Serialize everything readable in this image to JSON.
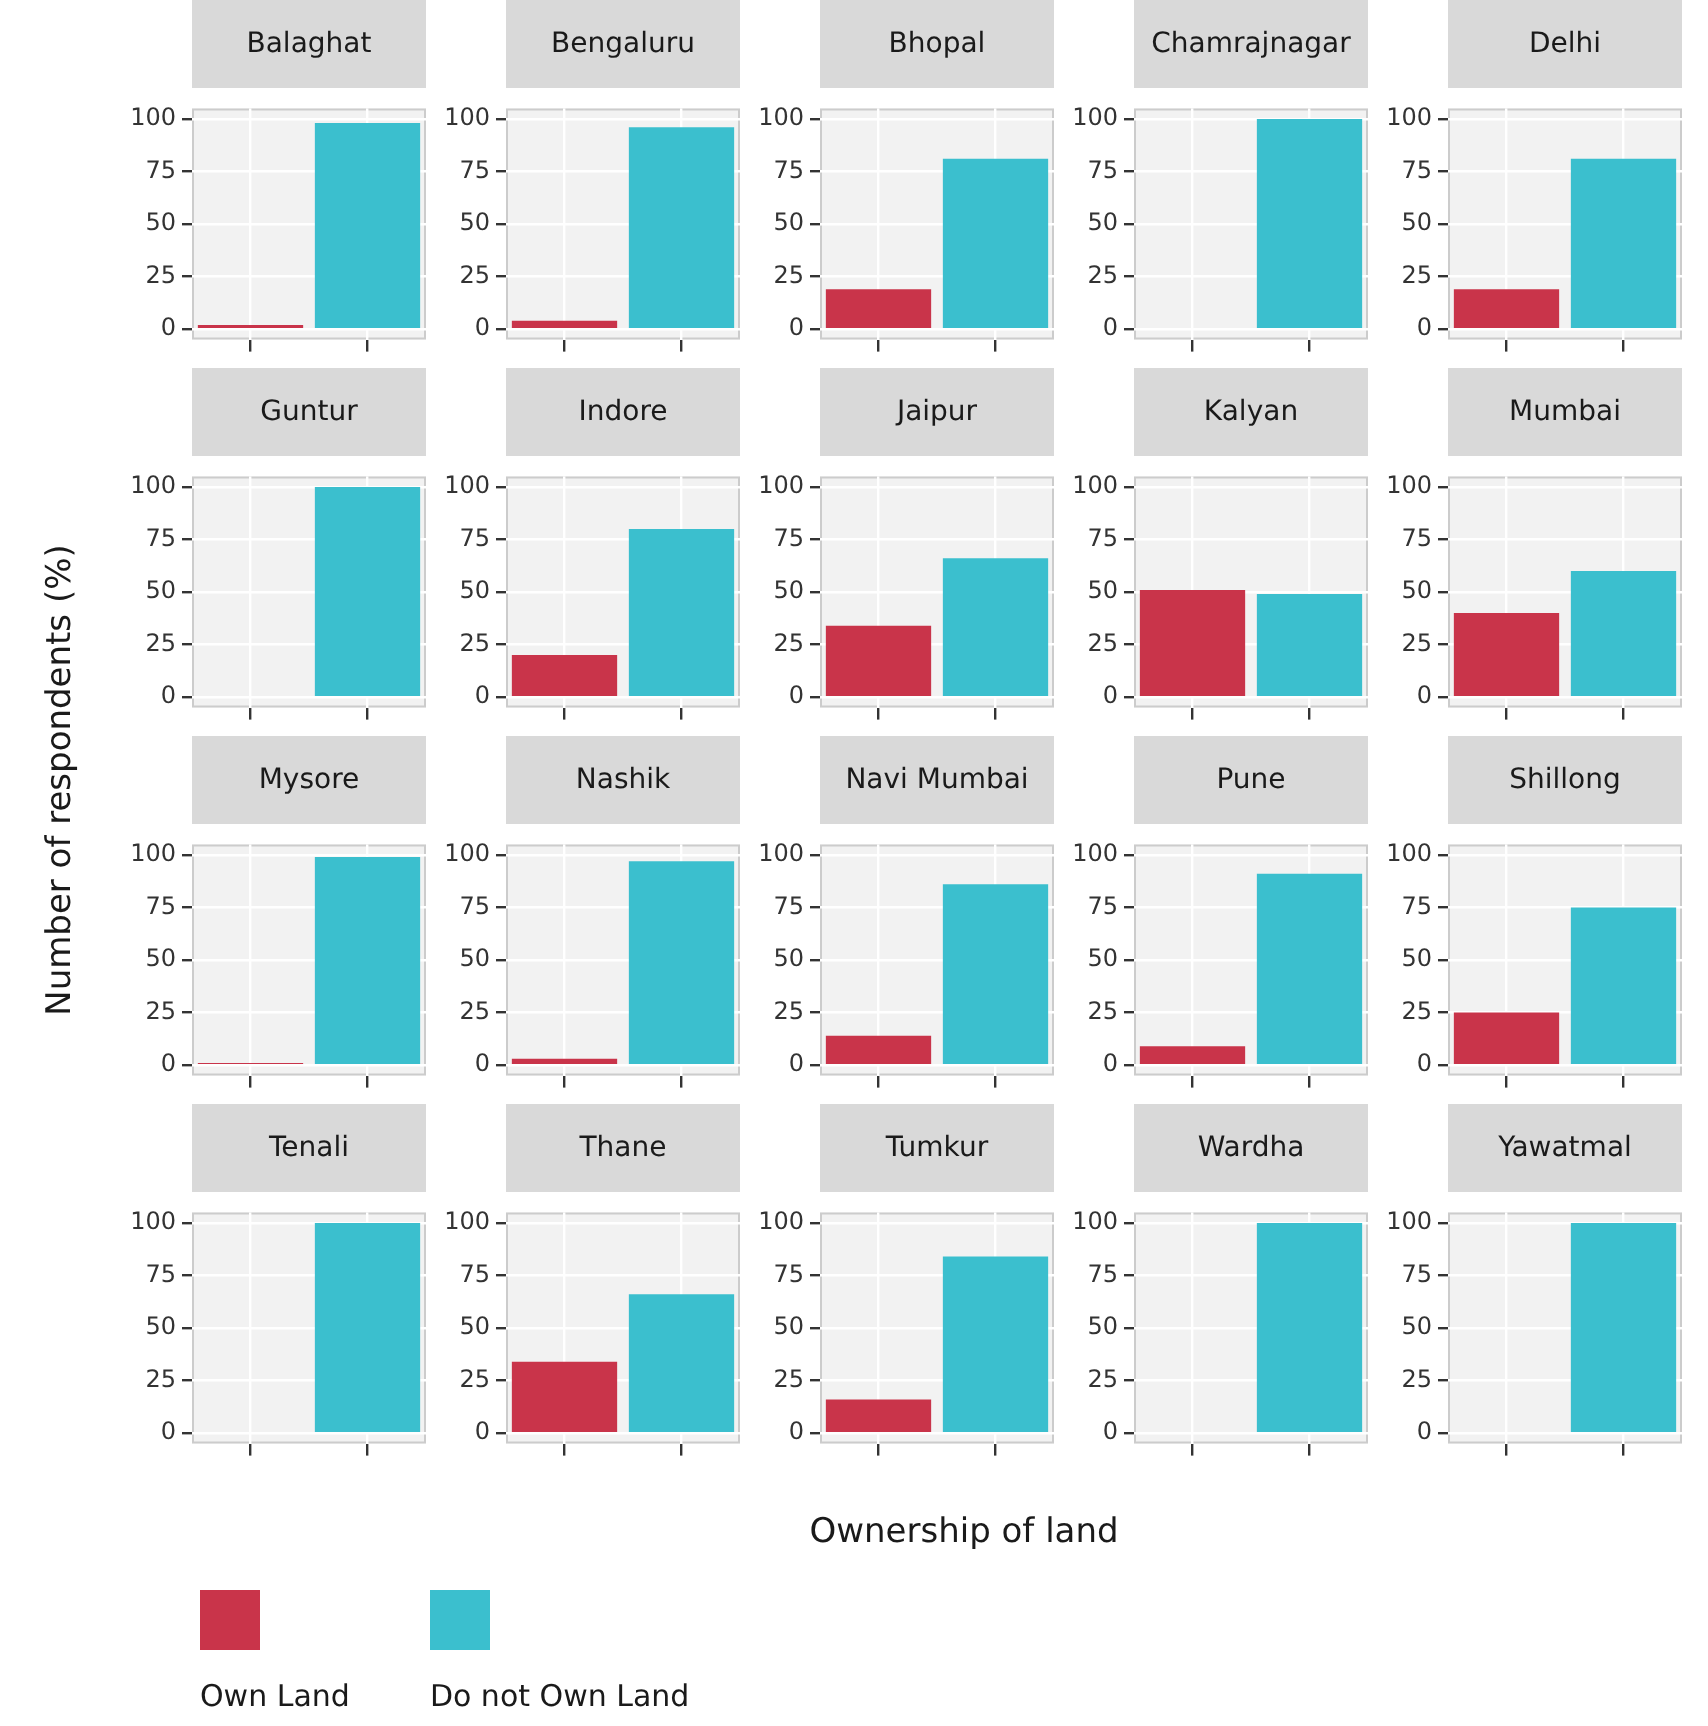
{
  "chart_data": [
    {
      "type": "bar",
      "title": "Balaghat",
      "legend": "bottom",
      "categories": [
        null,
        null
      ],
      "series": [
        {
          "name": "Own Land",
          "color": "#c9344a",
          "values": [
            2,
            null
          ]
        },
        {
          "name": "Do not Own Land",
          "color": "#3bbfce",
          "values": [
            null,
            98
          ]
        }
      ],
      "ylim": [
        -5,
        105
      ],
      "yticks": [
        0,
        25,
        50,
        75,
        100
      ],
      "tick_labels": "y",
      "grid": true
    },
    {
      "type": "bar",
      "title": "Bengaluru",
      "categories": [
        null,
        null
      ],
      "series": [
        {
          "color": "#c9344a",
          "values": [
            4,
            null
          ]
        },
        {
          "color": "#3bbfce",
          "values": [
            null,
            96
          ]
        }
      ],
      "ylim": [
        -5,
        105
      ],
      "yticks": [
        0,
        25,
        50,
        75,
        100
      ],
      "tick_labels": "y",
      "grid": true
    },
    {
      "type": "bar",
      "title": "Bhopal",
      "categories": [
        null,
        null
      ],
      "series": [
        {
          "color": "#c9344a",
          "values": [
            19,
            null
          ]
        },
        {
          "color": "#3bbfce",
          "values": [
            null,
            81
          ]
        }
      ],
      "ylim": [
        -5,
        105
      ],
      "yticks": [
        0,
        25,
        50,
        75,
        100
      ],
      "tick_labels": "y",
      "grid": true
    },
    {
      "type": "bar",
      "title": "Chamrajnagar",
      "categories": [
        null,
        null
      ],
      "series": [
        {
          "color": "#c9344a",
          "values": [
            0,
            null
          ]
        },
        {
          "color": "#3bbfce",
          "values": [
            null,
            100
          ]
        }
      ],
      "ylim": [
        -5,
        105
      ],
      "yticks": [
        0,
        25,
        50,
        75,
        100
      ],
      "tick_labels": "y",
      "grid": true
    },
    {
      "type": "bar",
      "title": "Delhi",
      "categories": [
        null,
        null
      ],
      "series": [
        {
          "color": "#c9344a",
          "values": [
            19,
            null
          ]
        },
        {
          "color": "#3bbfce",
          "values": [
            null,
            81
          ]
        }
      ],
      "ylim": [
        -5,
        105
      ],
      "yticks": [
        0,
        25,
        50,
        75,
        100
      ],
      "tick_labels": "y",
      "grid": true
    },
    {
      "type": "bar",
      "title": "Guntur",
      "categories": [
        null,
        null
      ],
      "series": [
        {
          "color": "#c9344a",
          "values": [
            0,
            null
          ]
        },
        {
          "color": "#3bbfce",
          "values": [
            null,
            100
          ]
        }
      ],
      "ylim": [
        -5,
        105
      ],
      "yticks": [
        0,
        25,
        50,
        75,
        100
      ],
      "tick_labels": "y",
      "grid": true
    },
    {
      "type": "bar",
      "title": "Indore",
      "categories": [
        null,
        null
      ],
      "series": [
        {
          "color": "#c9344a",
          "values": [
            20,
            null
          ]
        },
        {
          "color": "#3bbfce",
          "values": [
            null,
            80
          ]
        }
      ],
      "ylim": [
        -5,
        105
      ],
      "yticks": [
        0,
        25,
        50,
        75,
        100
      ],
      "tick_labels": "y",
      "grid": true
    },
    {
      "type": "bar",
      "title": "Jaipur",
      "categories": [
        null,
        null
      ],
      "series": [
        {
          "color": "#c9344a",
          "values": [
            34,
            null
          ]
        },
        {
          "color": "#3bbfce",
          "values": [
            null,
            66
          ]
        }
      ],
      "ylim": [
        -5,
        105
      ],
      "yticks": [
        0,
        25,
        50,
        75,
        100
      ],
      "tick_labels": "y",
      "grid": true
    },
    {
      "type": "bar",
      "title": "Kalyan",
      "categories": [
        null,
        null
      ],
      "series": [
        {
          "color": "#c9344a",
          "values": [
            51,
            null
          ]
        },
        {
          "color": "#3bbfce",
          "values": [
            null,
            49
          ]
        }
      ],
      "ylim": [
        -5,
        105
      ],
      "yticks": [
        0,
        25,
        50,
        75,
        100
      ],
      "tick_labels": "y",
      "grid": true
    },
    {
      "type": "bar",
      "title": "Mumbai",
      "categories": [
        null,
        null
      ],
      "series": [
        {
          "color": "#c9344a",
          "values": [
            40,
            null
          ]
        },
        {
          "color": "#3bbfce",
          "values": [
            null,
            60
          ]
        }
      ],
      "ylim": [
        -5,
        105
      ],
      "yticks": [
        0,
        25,
        50,
        75,
        100
      ],
      "tick_labels": "y",
      "grid": true
    },
    {
      "type": "bar",
      "title": "Mysore",
      "ylabel": "Number of respondents (%)",
      "categories": [
        null,
        null
      ],
      "series": [
        {
          "color": "#c9344a",
          "values": [
            1,
            null
          ]
        },
        {
          "color": "#3bbfce",
          "values": [
            null,
            99
          ]
        }
      ],
      "ylim": [
        -5,
        105
      ],
      "yticks": [
        0,
        25,
        50,
        75,
        100
      ],
      "tick_labels": "y",
      "grid": true
    },
    {
      "type": "bar",
      "title": "Nashik",
      "categories": [
        null,
        null
      ],
      "series": [
        {
          "color": "#c9344a",
          "values": [
            3,
            null
          ]
        },
        {
          "color": "#3bbfce",
          "values": [
            null,
            97
          ]
        }
      ],
      "ylim": [
        -5,
        105
      ],
      "yticks": [
        0,
        25,
        50,
        75,
        100
      ],
      "tick_labels": "y",
      "grid": true
    },
    {
      "type": "bar",
      "title": "Navi Mumbai",
      "categories": [
        null,
        null
      ],
      "series": [
        {
          "color": "#c9344a",
          "values": [
            14,
            null
          ]
        },
        {
          "color": "#3bbfce",
          "values": [
            null,
            86
          ]
        }
      ],
      "ylim": [
        -5,
        105
      ],
      "yticks": [
        0,
        25,
        50,
        75,
        100
      ],
      "tick_labels": "y",
      "grid": true
    },
    {
      "type": "bar",
      "title": "Pune",
      "categories": [
        null,
        null
      ],
      "series": [
        {
          "color": "#c9344a",
          "values": [
            9,
            null
          ]
        },
        {
          "color": "#3bbfce",
          "values": [
            null,
            91
          ]
        }
      ],
      "ylim": [
        -5,
        105
      ],
      "yticks": [
        0,
        25,
        50,
        75,
        100
      ],
      "tick_labels": "y",
      "grid": true
    },
    {
      "type": "bar",
      "title": "Shillong",
      "categories": [
        null,
        null
      ],
      "series": [
        {
          "color": "#c9344a",
          "values": [
            25,
            null
          ]
        },
        {
          "color": "#3bbfce",
          "values": [
            null,
            75
          ]
        }
      ],
      "ylim": [
        -5,
        105
      ],
      "yticks": [
        0,
        25,
        50,
        75,
        100
      ],
      "tick_labels": "y",
      "grid": true
    },
    {
      "type": "bar",
      "title": "Tenali",
      "categories": [
        null,
        null
      ],
      "series": [
        {
          "color": "#c9344a",
          "values": [
            0,
            null
          ]
        },
        {
          "color": "#3bbfce",
          "values": [
            null,
            100
          ]
        }
      ],
      "ylim": [
        -5,
        105
      ],
      "yticks": [
        0,
        25,
        50,
        75,
        100
      ],
      "tick_labels": "y",
      "grid": true
    },
    {
      "type": "bar",
      "title": "Thane",
      "categories": [
        null,
        null
      ],
      "series": [
        {
          "color": "#c9344a",
          "values": [
            34,
            null
          ]
        },
        {
          "color": "#3bbfce",
          "values": [
            null,
            66
          ]
        }
      ],
      "ylim": [
        -5,
        105
      ],
      "yticks": [
        0,
        25,
        50,
        75,
        100
      ],
      "tick_labels": "y",
      "grid": true
    },
    {
      "type": "bar",
      "title": "Tumkur",
      "xlabel": "Ownership of land",
      "categories": [
        null,
        null
      ],
      "series": [
        {
          "color": "#c9344a",
          "values": [
            16,
            null
          ]
        },
        {
          "color": "#3bbfce",
          "values": [
            null,
            84
          ]
        }
      ],
      "ylim": [
        -5,
        105
      ],
      "yticks": [
        0,
        25,
        50,
        75,
        100
      ],
      "tick_labels": "y",
      "grid": true
    },
    {
      "type": "bar",
      "title": "Wardha",
      "categories": [
        null,
        null
      ],
      "series": [
        {
          "color": "#c9344a",
          "values": [
            0,
            null
          ]
        },
        {
          "color": "#3bbfce",
          "values": [
            null,
            100
          ]
        }
      ],
      "ylim": [
        -5,
        105
      ],
      "yticks": [
        0,
        25,
        50,
        75,
        100
      ],
      "tick_labels": "y",
      "grid": true
    },
    {
      "type": "bar",
      "title": "Yawatmal",
      "categories": [
        null,
        null
      ],
      "series": [
        {
          "color": "#c9344a",
          "values": [
            0,
            null
          ]
        },
        {
          "color": "#3bbfce",
          "values": [
            null,
            100
          ]
        }
      ],
      "ylim": [
        -5,
        105
      ],
      "yticks": [
        0,
        25,
        50,
        75,
        100
      ],
      "tick_labels": "y",
      "grid": true
    }
  ]
}
